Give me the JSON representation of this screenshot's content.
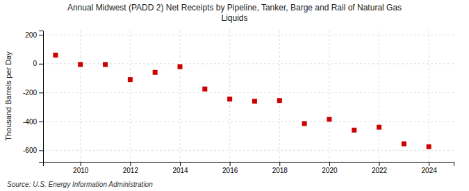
{
  "chart_data": {
    "type": "scatter",
    "title": "Annual Midwest (PADD 2) Net Receipts by Pipeline, Tanker, Barge and Rail of Natural Gas\nLiquids",
    "y_label": "Thousand Barrels per Day",
    "annotation": "Source: U.S. Energy Information Administration",
    "x": [
      2009,
      2010,
      2011,
      2012,
      2013,
      2014,
      2015,
      2016,
      2017,
      2018,
      2019,
      2020,
      2021,
      2022,
      2023,
      2024
    ],
    "values": [
      60,
      -5,
      -5,
      -110,
      -60,
      -20,
      -175,
      -245,
      -260,
      -255,
      -415,
      -385,
      -460,
      -440,
      -555,
      -575
    ],
    "color": "#CC0000",
    "marker": "square",
    "ylim": [
      -680,
      230
    ],
    "yticks": [
      -600,
      -400,
      -200,
      0,
      200
    ],
    "xlim": [
      2008.5,
      2025
    ],
    "xticks": [
      2010,
      2012,
      2014,
      2016,
      2018,
      2020,
      2022,
      2024
    ],
    "grid": true
  }
}
